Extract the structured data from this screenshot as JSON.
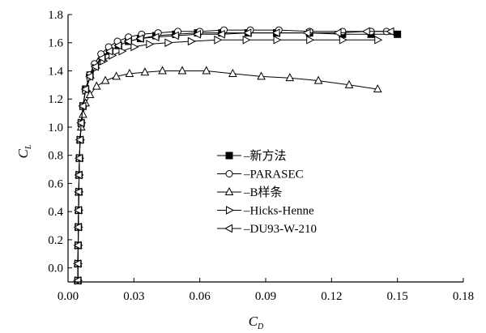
{
  "chart_data": {
    "type": "line",
    "title": "",
    "xlabel": {
      "main": "C",
      "sub": "D"
    },
    "ylabel": {
      "main": "C",
      "sub": "L"
    },
    "xlim": [
      0.0,
      0.18
    ],
    "ylim": [
      -0.1,
      1.8
    ],
    "xticks": [
      "0.00",
      "0.03",
      "0.06",
      "0.09",
      "0.12",
      "0.15",
      "0.18"
    ],
    "yticks": [
      "0.0",
      "0.2",
      "0.4",
      "0.6",
      "0.8",
      "1.0",
      "1.2",
      "1.4",
      "1.6",
      "1.8"
    ],
    "grid": false,
    "legend_position": "center-right",
    "series": [
      {
        "name": "新方法",
        "marker": "filled-square",
        "x": [
          0.0045,
          0.0045,
          0.0046,
          0.0047,
          0.0048,
          0.0049,
          0.005,
          0.0052,
          0.0055,
          0.006,
          0.0068,
          0.008,
          0.01,
          0.0125,
          0.0155,
          0.019,
          0.023,
          0.0275,
          0.033,
          0.04,
          0.049,
          0.059,
          0.07,
          0.082,
          0.095,
          0.11,
          0.125,
          0.138,
          0.15
        ],
        "y": [
          -0.09,
          0.03,
          0.16,
          0.29,
          0.41,
          0.54,
          0.66,
          0.78,
          0.91,
          1.03,
          1.15,
          1.27,
          1.37,
          1.44,
          1.5,
          1.54,
          1.58,
          1.61,
          1.63,
          1.65,
          1.66,
          1.67,
          1.67,
          1.67,
          1.67,
          1.67,
          1.66,
          1.66,
          1.66
        ]
      },
      {
        "name": "PARASEC",
        "marker": "open-circle",
        "x": [
          0.0045,
          0.0045,
          0.0046,
          0.0047,
          0.0048,
          0.0049,
          0.005,
          0.0052,
          0.0055,
          0.006,
          0.0068,
          0.008,
          0.0098,
          0.012,
          0.015,
          0.0185,
          0.0225,
          0.0275,
          0.0335,
          0.041,
          0.05,
          0.06,
          0.071,
          0.083,
          0.096,
          0.11,
          0.125,
          0.138,
          0.145
        ],
        "y": [
          -0.09,
          0.03,
          0.16,
          0.29,
          0.41,
          0.54,
          0.66,
          0.78,
          0.91,
          1.03,
          1.15,
          1.27,
          1.37,
          1.45,
          1.52,
          1.57,
          1.61,
          1.64,
          1.66,
          1.67,
          1.68,
          1.68,
          1.69,
          1.69,
          1.69,
          1.68,
          1.68,
          1.68,
          1.68
        ]
      },
      {
        "name": "B样条",
        "marker": "open-triangle-up",
        "x": [
          0.0045,
          0.0045,
          0.0046,
          0.0047,
          0.0048,
          0.0049,
          0.005,
          0.0052,
          0.0055,
          0.006,
          0.0068,
          0.008,
          0.01,
          0.013,
          0.017,
          0.022,
          0.028,
          0.035,
          0.043,
          0.052,
          0.063,
          0.075,
          0.088,
          0.101,
          0.114,
          0.128,
          0.141
        ],
        "y": [
          -0.09,
          0.03,
          0.16,
          0.29,
          0.41,
          0.54,
          0.66,
          0.78,
          0.91,
          1.0,
          1.09,
          1.17,
          1.23,
          1.29,
          1.33,
          1.36,
          1.38,
          1.39,
          1.4,
          1.4,
          1.4,
          1.38,
          1.36,
          1.35,
          1.33,
          1.3,
          1.27
        ]
      },
      {
        "name": "Hicks-Henne",
        "marker": "open-triangle-right",
        "x": [
          0.0045,
          0.0045,
          0.0046,
          0.0047,
          0.0048,
          0.0049,
          0.005,
          0.0052,
          0.0055,
          0.006,
          0.0068,
          0.008,
          0.01,
          0.0125,
          0.016,
          0.02,
          0.0245,
          0.03,
          0.037,
          0.0455,
          0.056,
          0.068,
          0.081,
          0.095,
          0.11,
          0.125,
          0.141
        ],
        "y": [
          -0.09,
          0.03,
          0.16,
          0.29,
          0.41,
          0.54,
          0.66,
          0.78,
          0.91,
          1.03,
          1.15,
          1.26,
          1.35,
          1.42,
          1.47,
          1.51,
          1.54,
          1.57,
          1.59,
          1.6,
          1.61,
          1.62,
          1.62,
          1.62,
          1.62,
          1.62,
          1.62
        ]
      },
      {
        "name": "DU93-W-210",
        "marker": "open-triangle-left",
        "x": [
          0.0045,
          0.0045,
          0.0046,
          0.0047,
          0.0048,
          0.0049,
          0.005,
          0.0052,
          0.0055,
          0.006,
          0.0068,
          0.008,
          0.01,
          0.0125,
          0.0155,
          0.019,
          0.023,
          0.0275,
          0.033,
          0.04,
          0.049,
          0.059,
          0.07,
          0.082,
          0.095,
          0.109,
          0.123,
          0.136,
          0.147
        ],
        "y": [
          -0.09,
          0.03,
          0.16,
          0.29,
          0.41,
          0.54,
          0.66,
          0.78,
          0.91,
          1.03,
          1.15,
          1.27,
          1.36,
          1.43,
          1.49,
          1.54,
          1.58,
          1.61,
          1.63,
          1.64,
          1.65,
          1.66,
          1.66,
          1.67,
          1.67,
          1.67,
          1.67,
          1.68,
          1.68
        ]
      }
    ]
  }
}
